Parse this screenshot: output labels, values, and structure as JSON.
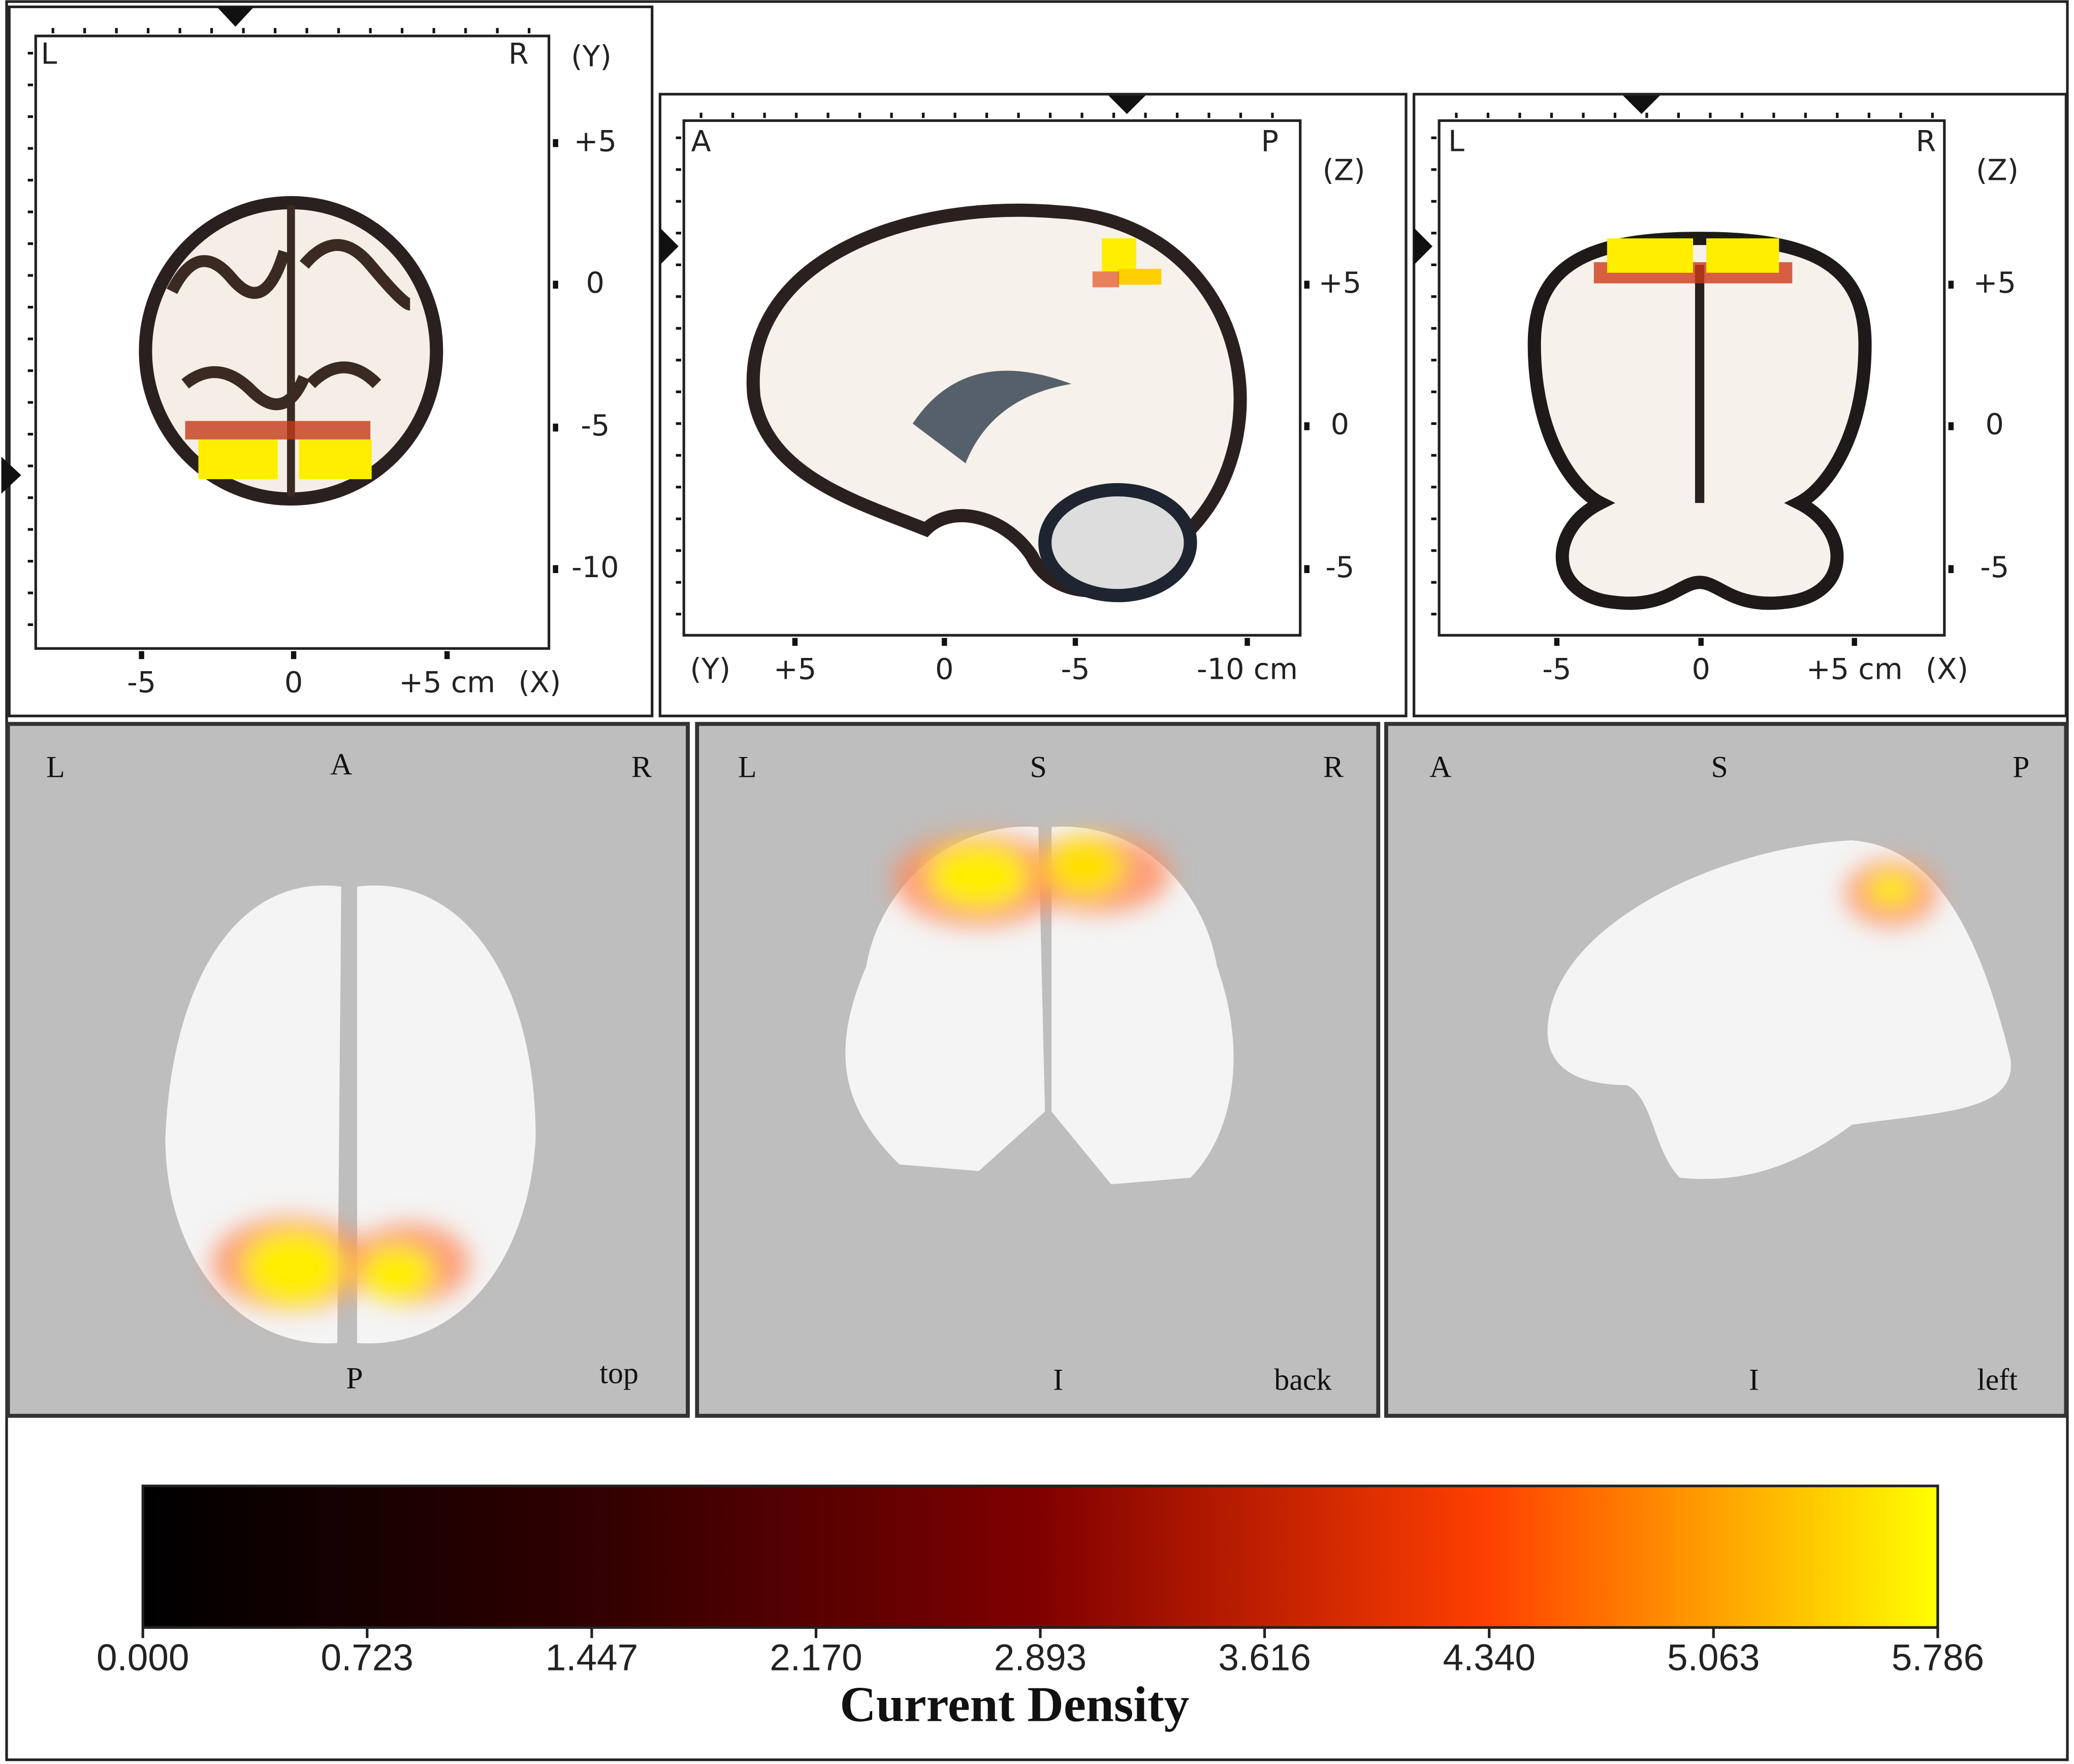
{
  "slices": [
    {
      "corners": [
        "L",
        "R"
      ],
      "vaxis": {
        "name": "(Y)",
        "ticks": [
          "+5",
          "0",
          "-5",
          "-10"
        ]
      },
      "haxis": {
        "name": "(X)",
        "ticks": [
          "-5",
          "0",
          "+5 cm"
        ]
      }
    },
    {
      "corners": [
        "A",
        "P"
      ],
      "vaxis": {
        "name": "(Z)",
        "ticks": [
          "+5",
          "0",
          "-5"
        ]
      },
      "haxis": {
        "name": "(Y)",
        "ticks": [
          "+5",
          "0",
          "-5",
          "-10 cm"
        ]
      }
    },
    {
      "corners": [
        "L",
        "R"
      ],
      "vaxis": {
        "name": "(Z)",
        "ticks": [
          "+5",
          "0",
          "-5"
        ]
      },
      "haxis": {
        "name": "(X)",
        "ticks": [
          "-5",
          "0",
          "+5 cm"
        ]
      }
    }
  ],
  "views": [
    {
      "left": "L",
      "top": "A",
      "right": "R",
      "bottom": "P",
      "view": "top"
    },
    {
      "left": "L",
      "top": "S",
      "right": "R",
      "bottom": "I",
      "view": "back"
    },
    {
      "left": "A",
      "top": "S",
      "right": "P",
      "bottom": "I",
      "view": "left"
    }
  ],
  "colorbar": {
    "title": "Current Density",
    "lim": [
      0,
      5.786
    ],
    "ticks": [
      {
        "value": 0,
        "label": "0.000"
      },
      0.723,
      1.447,
      {
        "value": 2.17,
        "label": "2.170"
      },
      2.893,
      3.616,
      {
        "value": 4.34,
        "label": "4.340"
      },
      5.063,
      5.786
    ],
    "colors": [
      "#000000",
      "#300000",
      "#800000",
      "#ff4000",
      "#ffff00"
    ]
  }
}
